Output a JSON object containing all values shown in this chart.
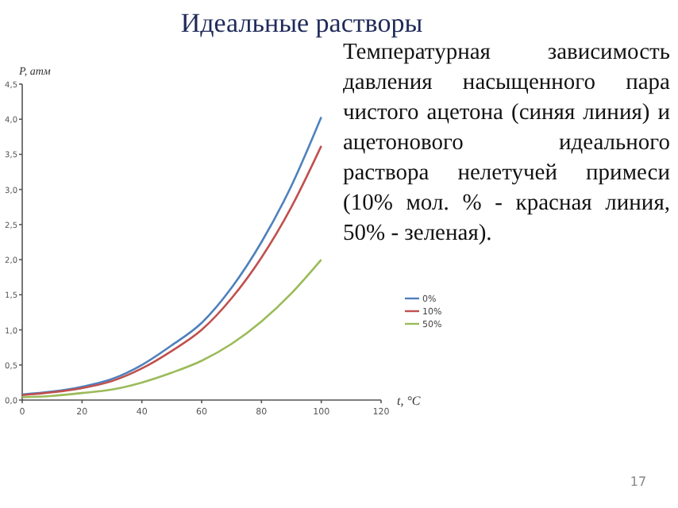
{
  "chart_data": {
    "type": "line",
    "title": "Идеальные растворы",
    "xlabel": "t, °C",
    "ylabel": "P, атм",
    "x": [
      0,
      10,
      20,
      30,
      40,
      50,
      60,
      70,
      80,
      90,
      100
    ],
    "series": [
      {
        "name": "0%",
        "color": "#4f81bd",
        "values": [
          0.08,
          0.12,
          0.19,
          0.3,
          0.5,
          0.78,
          1.1,
          1.6,
          2.25,
          3.05,
          4.03
        ]
      },
      {
        "name": "10%",
        "color": "#c0504d",
        "values": [
          0.07,
          0.11,
          0.17,
          0.27,
          0.45,
          0.7,
          1.0,
          1.45,
          2.03,
          2.75,
          3.62
        ]
      },
      {
        "name": "50%",
        "color": "#9bbb59",
        "values": [
          0.04,
          0.06,
          0.1,
          0.15,
          0.25,
          0.39,
          0.56,
          0.8,
          1.12,
          1.52,
          2.0
        ]
      }
    ],
    "xlim": [
      0,
      120
    ],
    "xticks": [
      0,
      20,
      40,
      60,
      80,
      100,
      120
    ],
    "ylim": [
      0,
      4.5
    ],
    "yticks": [
      {
        "value": 0,
        "label": "0,0"
      },
      {
        "value": 0.5,
        "label": "0,5"
      },
      {
        "value": 1,
        "label": "1,0"
      },
      {
        "value": 1.5,
        "label": "1,5"
      },
      {
        "value": 2,
        "label": "2,0"
      },
      {
        "value": 2.5,
        "label": "2,5"
      },
      {
        "value": 3,
        "label": "3,0"
      },
      {
        "value": 3.5,
        "label": "3,5"
      },
      {
        "value": 4,
        "label": "4,0"
      },
      {
        "value": 4.5,
        "label": "4,5"
      }
    ],
    "legend": "right",
    "grid": false,
    "marker": "none",
    "line_style": "solid",
    "annotations": [
      "Температурная зависимость давления насыщенного пара чистого ацетона (синяя линия) и ацетонового идеального раствора нелетучей примеси (10% мол. % - красная линия, 50% - зеленая).",
      "17"
    ]
  }
}
